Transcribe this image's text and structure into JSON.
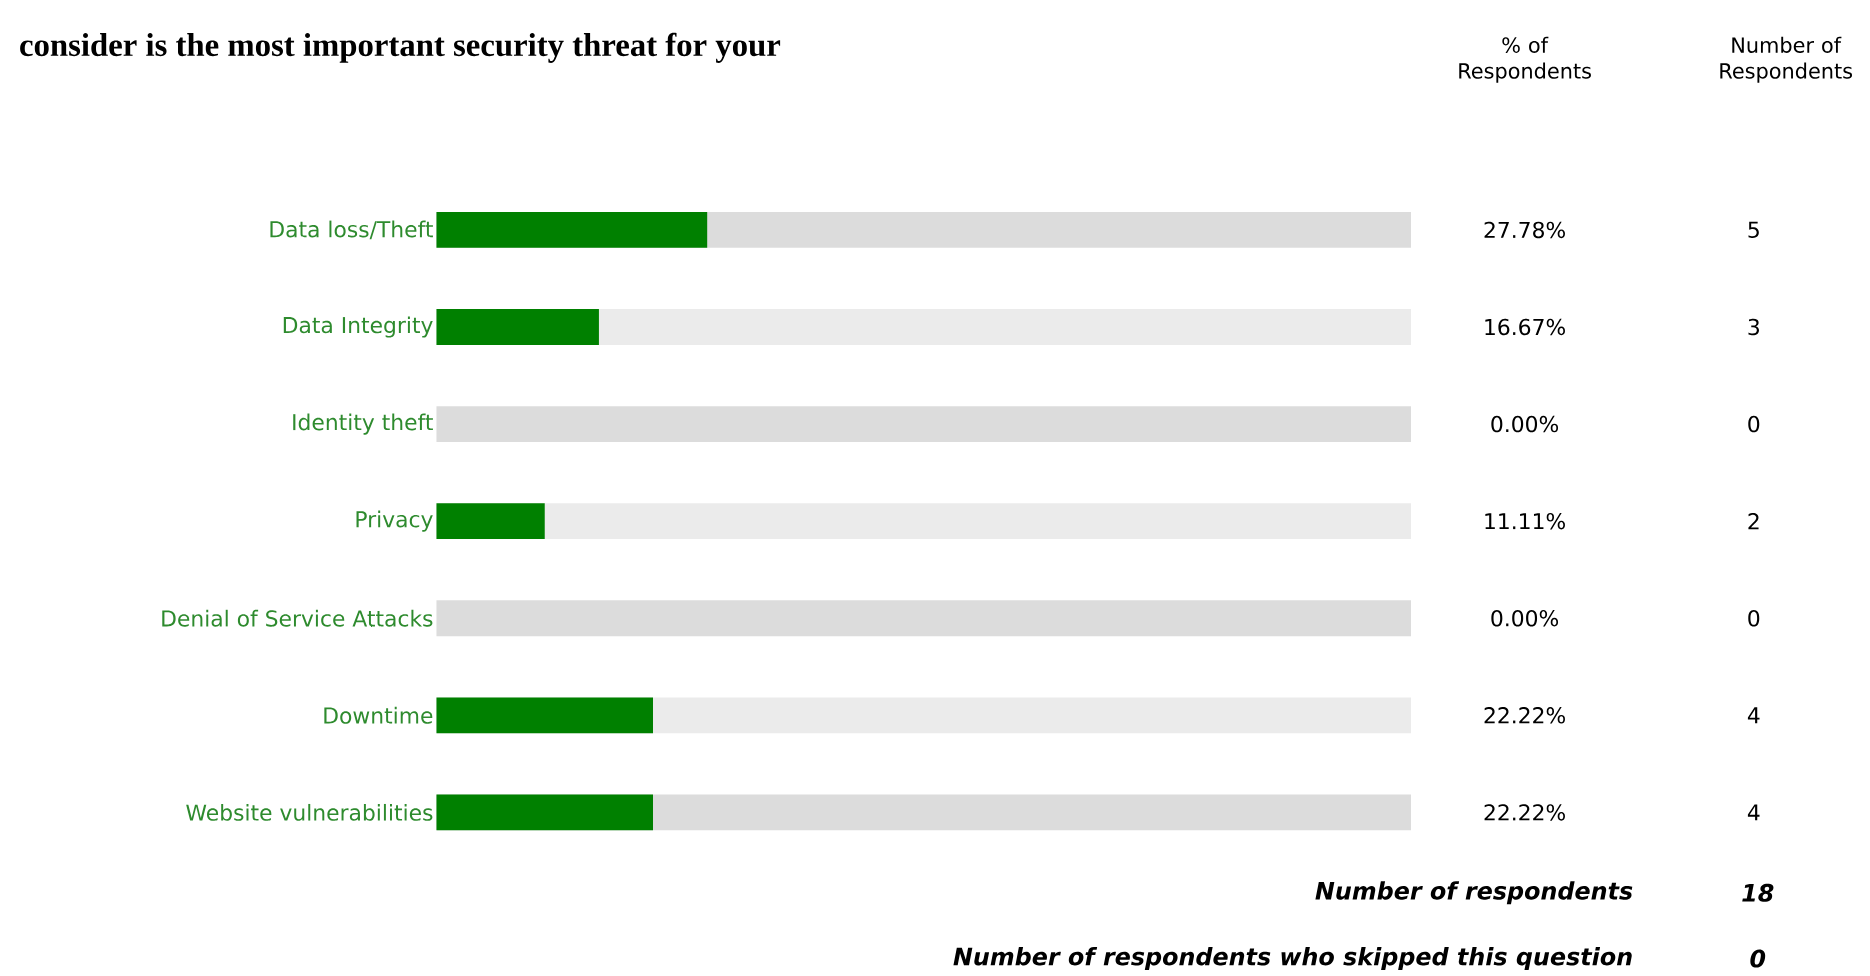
{
  "chart_data": {
    "type": "bar",
    "orientation": "horizontal",
    "title": "consider is the most important security threat for your",
    "categories": [
      "Data loss/Theft",
      "Data Integrity",
      "Identity theft",
      "Privacy",
      "Denial of Service Attacks",
      "Downtime",
      "Website vulnerabilities"
    ],
    "values": [
      27.78,
      16.67,
      0,
      11.11,
      0,
      22.22,
      22.22
    ],
    "value_labels": [
      "27.78%",
      "16.67%",
      "0.00%",
      "11.11%",
      "0.00%",
      "22.22%",
      "22.22%"
    ],
    "color": "#008000",
    "xlim": [
      0,
      100
    ],
    "annotations": [
      "% of Respondents",
      "Number of Respondents",
      "5",
      "3",
      "0",
      "2",
      "0",
      "4",
      "4",
      "Number of respondents",
      "18",
      "Number of respondents who skipped this question",
      "0"
    ]
  }
}
